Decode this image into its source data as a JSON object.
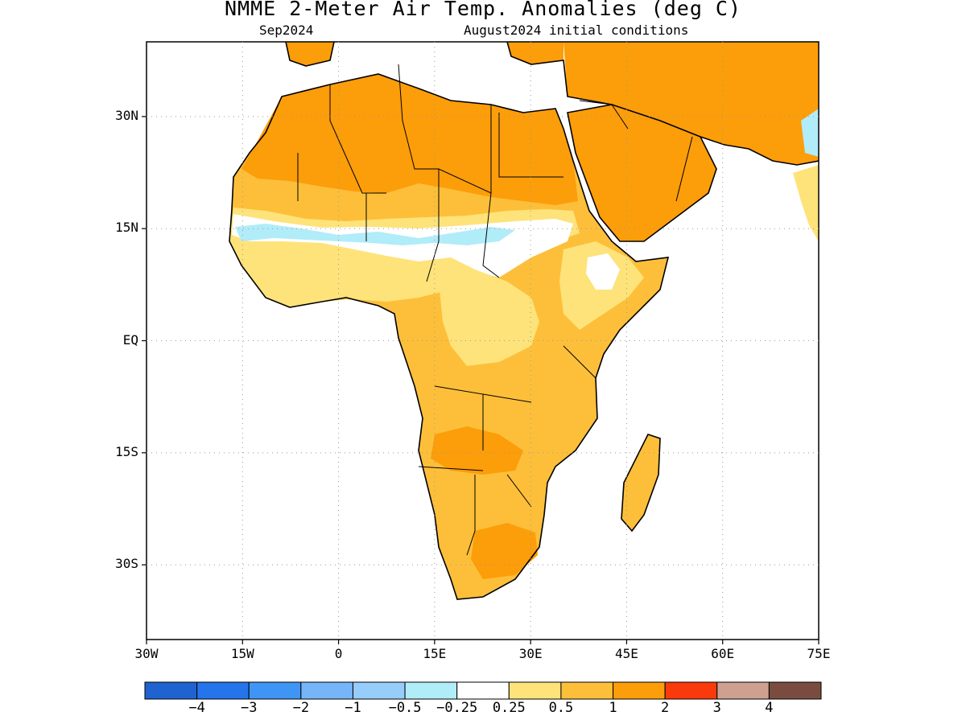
{
  "title": "NMME 2-Meter Air Temp. Anomalies (deg C)",
  "subtitle_left": "Sep2024",
  "subtitle_right": "August2024 initial conditions",
  "map": {
    "lon_range": [
      -30,
      75
    ],
    "lat_range": [
      -40,
      40
    ],
    "lat_ticks": [
      {
        "value": 30,
        "label": "30N"
      },
      {
        "value": 15,
        "label": "15N"
      },
      {
        "value": 0,
        "label": "EQ"
      },
      {
        "value": -15,
        "label": "15S"
      },
      {
        "value": -30,
        "label": "30S"
      }
    ],
    "lon_ticks": [
      {
        "value": -30,
        "label": "30W"
      },
      {
        "value": -15,
        "label": "15W"
      },
      {
        "value": 0,
        "label": "0"
      },
      {
        "value": 15,
        "label": "15E"
      },
      {
        "value": 30,
        "label": "30E"
      },
      {
        "value": 45,
        "label": "45E"
      },
      {
        "value": 60,
        "label": "60E"
      },
      {
        "value": 75,
        "label": "75E"
      }
    ],
    "grid": "dotted"
  },
  "colorbar": {
    "colors": [
      "#1f63d0",
      "#2474ec",
      "#3f95f5",
      "#76b6f8",
      "#97cdfa",
      "#b1ecf9",
      "#ffffff",
      "#fee37a",
      "#fdbf3a",
      "#fc9d0a",
      "#fa3a0c",
      "#cea08f",
      "#7a4c40"
    ],
    "labels": [
      "-4",
      "-3",
      "-2",
      "-1",
      "-0.5",
      "-0.25",
      "0.25",
      "0.5",
      "1",
      "2",
      "3",
      "4"
    ]
  },
  "colors": {
    "anom_0_5_1": "#fdbf3a",
    "anom_1_2": "#fc9d0a",
    "anom_0_25_0_5": "#fee37a",
    "anom_neg_0_25_neg_0_5": "#b1ecf9"
  }
}
